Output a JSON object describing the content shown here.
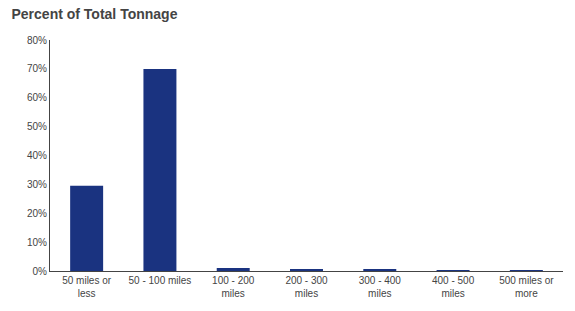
{
  "chart_data": {
    "type": "bar",
    "title": "Percent of Total Tonnage",
    "categories": [
      "50 miles or\nless",
      "50 - 100 miles",
      "100 - 200\nmiles",
      "200 - 300\nmiles",
      "300 - 400\nmiles",
      "400 - 500\nmiles",
      "500 miles or\nmore"
    ],
    "values": [
      0.295,
      0.7,
      0.01,
      0.004,
      0.004,
      0.003,
      0.003
    ],
    "color": "#1a3380",
    "ylim": [
      0,
      0.8
    ],
    "yticks": [
      {
        "value": 0.0,
        "label": "0%"
      },
      {
        "value": 0.1,
        "label": "10%"
      },
      {
        "value": 0.2,
        "label": "20%"
      },
      {
        "value": 0.3,
        "label": "30%"
      },
      {
        "value": 0.4,
        "label": "40%"
      },
      {
        "value": 0.5,
        "label": "50%"
      },
      {
        "value": 0.6,
        "label": "60%"
      },
      {
        "value": 0.7,
        "label": "70%"
      },
      {
        "value": 0.8,
        "label": "80%"
      }
    ],
    "grid": false
  }
}
